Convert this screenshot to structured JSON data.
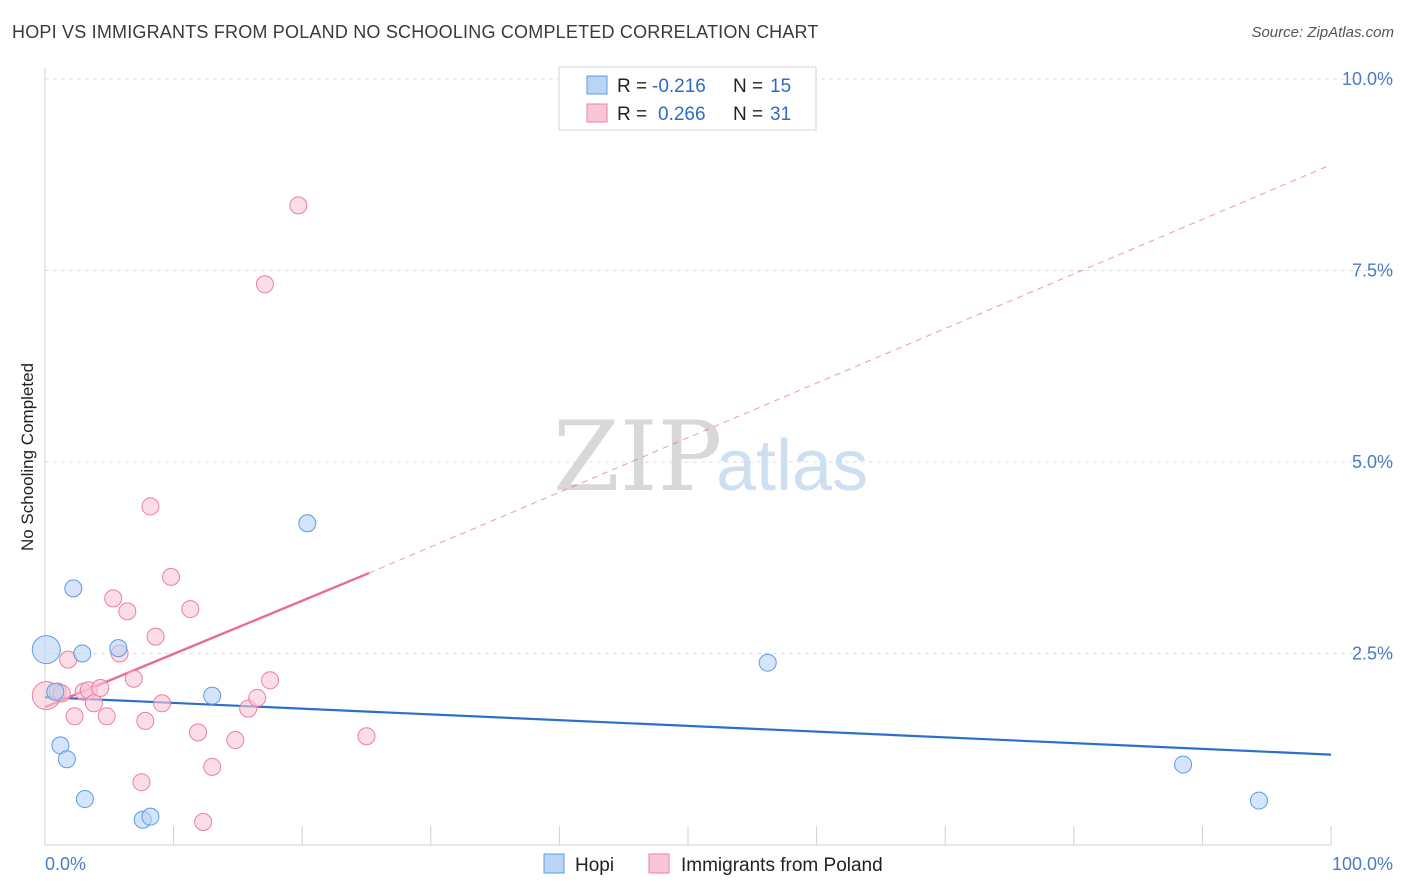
{
  "header": {
    "title": "HOPI VS IMMIGRANTS FROM POLAND NO SCHOOLING COMPLETED CORRELATION CHART",
    "source": "Source: ZipAtlas.com"
  },
  "watermark": {
    "zip": "ZIP",
    "atlas": "atlas"
  },
  "colors": {
    "hopi": "#5b9be6",
    "hopi_fill": "#b9d4f5",
    "poland": "#ec7fa2",
    "poland_fill": "#f8c6d6",
    "hopi_line": "#2c6fcb",
    "poland_line": "#e66b95"
  },
  "legend": {
    "rows": [
      {
        "r_label": "R =",
        "r_value": "-0.216",
        "n_label": "N =",
        "n_value": "15"
      },
      {
        "r_label": "R =",
        "r_value": "0.266",
        "n_label": "N =",
        "n_value": "31"
      }
    ]
  },
  "bottom_legend": {
    "items": [
      "Hopi",
      "Immigrants from Poland"
    ]
  },
  "chart_data": {
    "type": "scatter",
    "title": "HOPI VS IMMIGRANTS FROM POLAND NO SCHOOLING COMPLETED CORRELATION CHART",
    "xlabel": "",
    "ylabel": "No Schooling Completed",
    "xlim": [
      0,
      100
    ],
    "ylim": [
      0,
      10
    ],
    "x_tick_labels": [
      "0.0%",
      "100.0%"
    ],
    "y_ticks": [
      {
        "value": 2.5,
        "label": "2.5%"
      },
      {
        "value": 5.0,
        "label": "5.0%"
      },
      {
        "value": 7.5,
        "label": "7.5%"
      },
      {
        "value": 10.0,
        "label": "10.0%"
      }
    ],
    "series": [
      {
        "name": "Hopi",
        "points": [
          {
            "x": 0.1,
            "y": 2.55,
            "big": true
          },
          {
            "x": 0.8,
            "y": 2.0
          },
          {
            "x": 1.2,
            "y": 1.3
          },
          {
            "x": 1.7,
            "y": 1.12
          },
          {
            "x": 2.2,
            "y": 3.35
          },
          {
            "x": 2.9,
            "y": 2.5
          },
          {
            "x": 3.1,
            "y": 0.6
          },
          {
            "x": 5.7,
            "y": 2.57
          },
          {
            "x": 7.6,
            "y": 0.33
          },
          {
            "x": 8.2,
            "y": 0.37
          },
          {
            "x": 13,
            "y": 1.95
          },
          {
            "x": 20.4,
            "y": 4.2
          },
          {
            "x": 56.2,
            "y": 2.38
          },
          {
            "x": 88.5,
            "y": 1.05
          },
          {
            "x": 94.4,
            "y": 0.58
          }
        ],
        "trend": {
          "x0": 0,
          "y0": 1.93,
          "x1": 100,
          "y1": 1.18
        }
      },
      {
        "name": "Immigrants from Poland",
        "points": [
          {
            "x": 0.1,
            "y": 1.95,
            "big": true
          },
          {
            "x": 1.0,
            "y": 2.0
          },
          {
            "x": 1.3,
            "y": 1.98
          },
          {
            "x": 1.8,
            "y": 2.42
          },
          {
            "x": 2.3,
            "y": 1.68
          },
          {
            "x": 3.0,
            "y": 2.0
          },
          {
            "x": 3.4,
            "y": 2.02
          },
          {
            "x": 3.8,
            "y": 1.85
          },
          {
            "x": 4.3,
            "y": 2.05
          },
          {
            "x": 4.8,
            "y": 1.68
          },
          {
            "x": 5.3,
            "y": 3.22
          },
          {
            "x": 5.8,
            "y": 2.5
          },
          {
            "x": 6.4,
            "y": 3.05
          },
          {
            "x": 6.9,
            "y": 2.17
          },
          {
            "x": 7.5,
            "y": 0.82
          },
          {
            "x": 7.8,
            "y": 1.62
          },
          {
            "x": 8.2,
            "y": 4.42
          },
          {
            "x": 8.6,
            "y": 2.72
          },
          {
            "x": 9.1,
            "y": 1.85
          },
          {
            "x": 9.8,
            "y": 3.5
          },
          {
            "x": 11.3,
            "y": 3.08
          },
          {
            "x": 11.9,
            "y": 1.47
          },
          {
            "x": 12.3,
            "y": 0.3
          },
          {
            "x": 13.0,
            "y": 1.02
          },
          {
            "x": 14.8,
            "y": 1.37
          },
          {
            "x": 15.8,
            "y": 1.78
          },
          {
            "x": 16.5,
            "y": 1.92
          },
          {
            "x": 17.1,
            "y": 7.32
          },
          {
            "x": 17.5,
            "y": 2.15
          },
          {
            "x": 19.7,
            "y": 8.35
          },
          {
            "x": 25.0,
            "y": 1.42
          }
        ],
        "trend": {
          "x0": 0,
          "y0": 1.8,
          "x1": 25.2,
          "y1": 3.55,
          "dash_x1": 100,
          "dash_y1": 8.88
        }
      }
    ]
  }
}
